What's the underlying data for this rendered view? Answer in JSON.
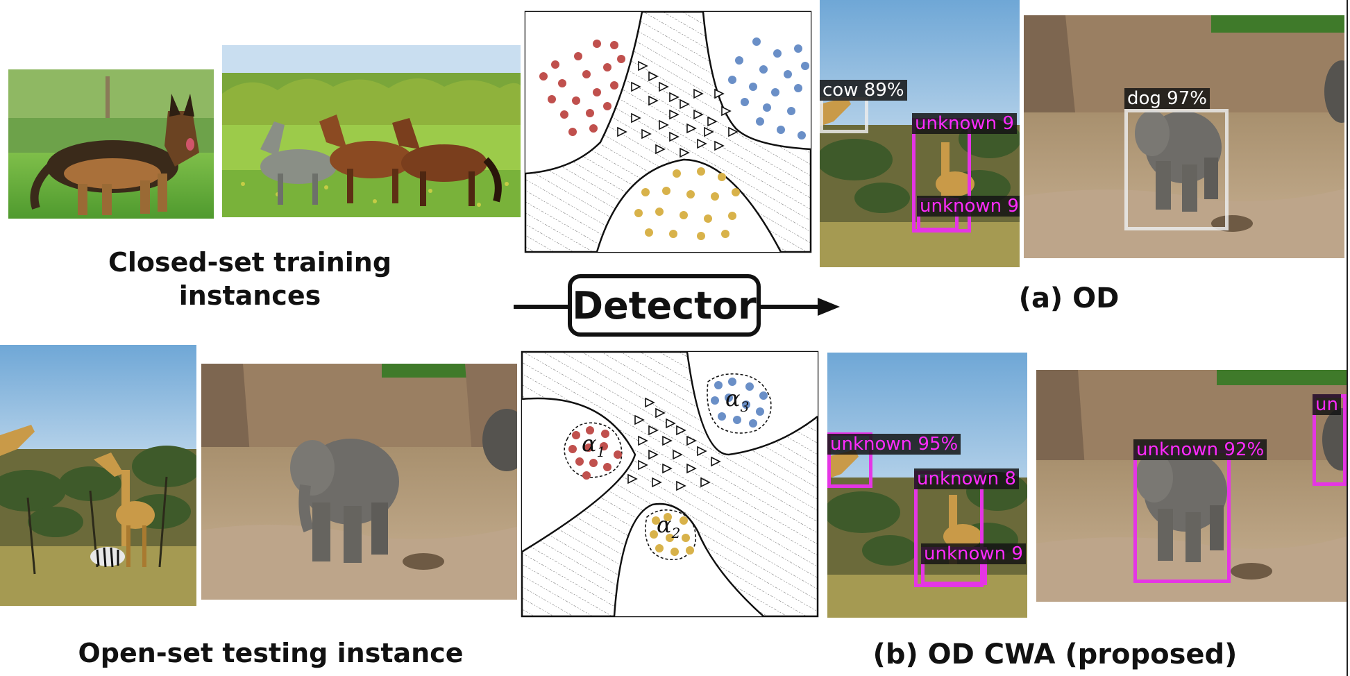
{
  "captions": {
    "closed_set": "Closed-set training instances",
    "open_set": "Open-set testing instance",
    "od": "(a) OD",
    "od_cwa": "(b) OD CWA (proposed)"
  },
  "detector": {
    "label": "Detector"
  },
  "plots": {
    "top": {},
    "bottom": {
      "alpha1": "α1",
      "alpha2": "α2",
      "alpha3": "α3"
    }
  },
  "detections": {
    "od_giraffe": [
      {
        "label": "cow 89%",
        "color": "#ffffff"
      },
      {
        "label": "unknown 9",
        "color": "#ff2bff"
      },
      {
        "label": "unknown 9",
        "color": "#ff2bff"
      }
    ],
    "od_elephant": [
      {
        "label": "dog 97%",
        "color": "#ffffff"
      }
    ],
    "cwa_giraffe": [
      {
        "label": "unknown 95%",
        "color": "#ff2bff"
      },
      {
        "label": "unknown 8",
        "color": "#ff2bff"
      },
      {
        "label": "unknown 9",
        "color": "#ff2bff"
      }
    ],
    "cwa_elephant": [
      {
        "label": "unknown 92%",
        "color": "#ff2bff"
      },
      {
        "label": "un",
        "color": "#ff2bff"
      }
    ]
  },
  "colors": {
    "red": "#c0504d",
    "blue": "#6a8fc7",
    "gold": "#d8b24a",
    "magenta": "#e535e5"
  }
}
